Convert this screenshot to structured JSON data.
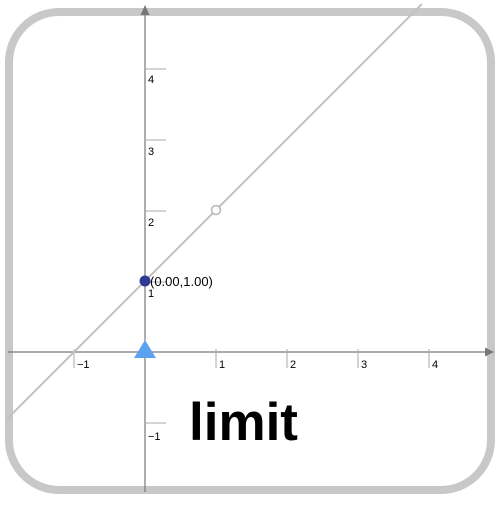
{
  "graph": {
    "x_tick_labels": [
      "−1",
      "1",
      "2",
      "3",
      "4"
    ],
    "y_tick_labels": [
      "4",
      "3",
      "2",
      "1",
      "−1"
    ],
    "point_label": "(0.00,1.00)",
    "title": "limit"
  },
  "chart_data": {
    "type": "line",
    "line": {
      "slope": 1,
      "intercept": 1
    },
    "point": {
      "x": 0,
      "y": 1
    },
    "hole": {
      "x": 1,
      "y": 2
    },
    "slider_marker_x": 0,
    "xlim": [
      -2,
      5
    ],
    "ylim": [
      -2,
      5
    ]
  },
  "colors": {
    "frame": "#c8c8c8",
    "axis": "#777777",
    "line": "#c0c0c0",
    "point": "#2f3b95",
    "marker": "#5aa2f0",
    "text": "#000000"
  }
}
